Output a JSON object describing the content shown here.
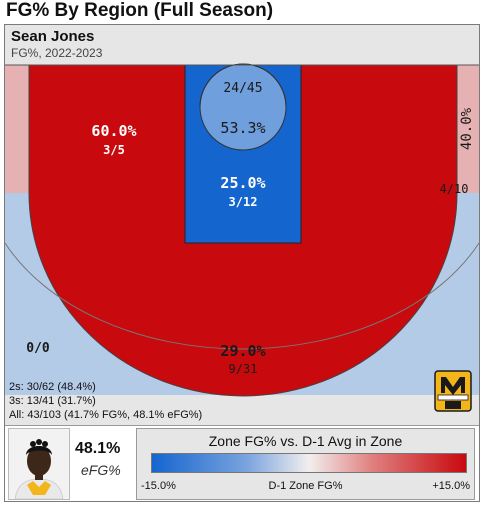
{
  "title": "FG% By Region (Full Season)",
  "player": {
    "name": "Sean Jones",
    "subtitle": "FG%, 2022-2023"
  },
  "summary": {
    "twos": "2s: 30/62 (48.4%)",
    "threes": "3s: 13/41 (31.7%)",
    "all": "All: 43/103 (41.7% FG%, 48.1% eFG%)"
  },
  "efg": {
    "value": "48.1%",
    "label": "eFG%"
  },
  "legend": {
    "title": "Zone FG% vs. D-1 Avg in Zone",
    "min": "-15.0%",
    "max": "+15.0%",
    "axis_label": "D-1 Zone FG%"
  },
  "colors": {
    "strong_red": "#c8090e",
    "light_blue": "#b4cbe8",
    "pale_red": "#e6b1b2",
    "strong_blue": "#1565cf",
    "mid_blue": "#6f9fdc"
  },
  "chart_data": {
    "type": "heatmap",
    "title": "FG% By Region (Full Season)",
    "zones": [
      {
        "zone": "Rim",
        "fg_pct": "53.3%",
        "makes_attempts": "24/45"
      },
      {
        "zone": "Paint",
        "fg_pct": "25.0%",
        "makes_attempts": "3/12"
      },
      {
        "zone": "Left Midrange",
        "fg_pct": "60.0%",
        "makes_attempts": "3/5"
      },
      {
        "zone": "Right Corner Midrange",
        "fg_pct": "40.0%",
        "makes_attempts": "4/10"
      },
      {
        "zone": "Top Three",
        "fg_pct": "29.0%",
        "makes_attempts": "9/31"
      },
      {
        "zone": "Left Corner Three",
        "fg_pct": "",
        "makes_attempts": "0/0"
      }
    ],
    "color_scale": {
      "min": -15.0,
      "max": 15.0,
      "unit": "%",
      "label": "D-1 Zone FG%"
    }
  }
}
